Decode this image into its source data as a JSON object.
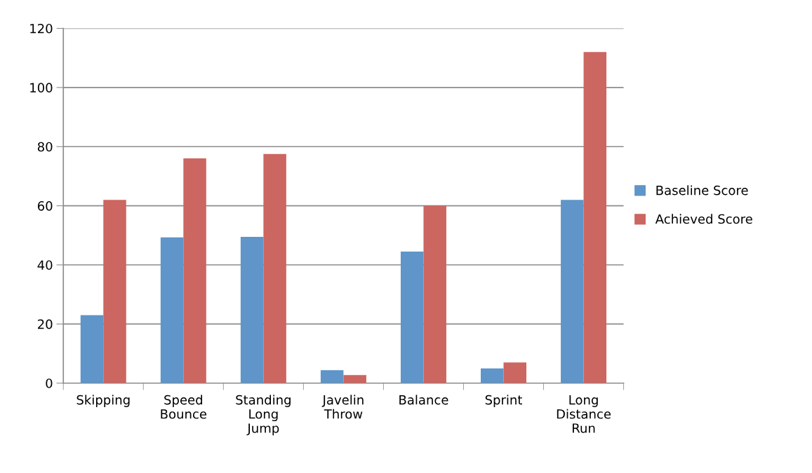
{
  "chart_data": {
    "type": "bar",
    "categories": [
      "Skipping",
      "Speed\nBounce",
      "Standing\nLong\nJump",
      "Javelin\nThrow",
      "Balance",
      "Sprint",
      "Long\nDistance\nRun"
    ],
    "series": [
      {
        "name": "Baseline Score",
        "color": "#5f95c8",
        "values": [
          23,
          49.3,
          49.5,
          4.4,
          44.5,
          5,
          62
        ]
      },
      {
        "name": "Achieved Score",
        "color": "#cc6660",
        "values": [
          62,
          76,
          77.5,
          2.7,
          60,
          7,
          112
        ]
      }
    ],
    "ylim": [
      0,
      120
    ],
    "yticks": [
      0,
      20,
      40,
      60,
      80,
      100,
      120
    ],
    "grid": "y",
    "legend": "right"
  }
}
